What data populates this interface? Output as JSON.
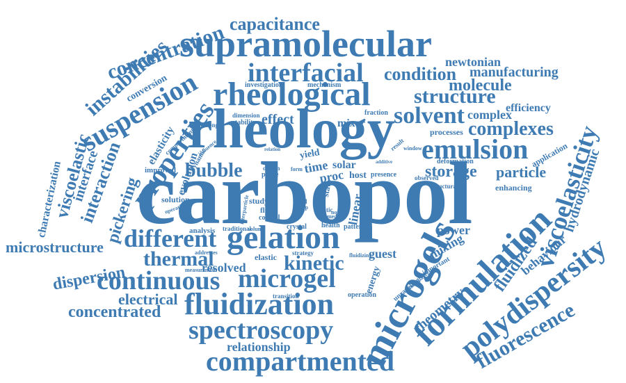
{
  "accent_color": "#3f7bb3",
  "words": {
    "carbopol": "carbopol",
    "rheology": "rheology",
    "rheological": "rheological",
    "supramolecular": "supramolecular",
    "microgels": "microgels",
    "formulation": "formulation",
    "gelation": "gelation",
    "compartmented": "compartmented",
    "continuous": "continuous",
    "microgel": "microgel",
    "fluidization": "fluidization",
    "spectroscopy": "spectroscopy",
    "polydispersity": "polydispersity",
    "fluorescence": "fluorescence",
    "viscoelasticity": "viscoelasticity",
    "emulsion": "emulsion",
    "interfacial": "interfacial",
    "suspension": "suspension",
    "properties": "properties",
    "different": "different",
    "concentration": "concentration",
    "instabilities": "instabilities",
    "capacitance": "capacitance",
    "structure": "structure",
    "solvent": "solvent",
    "complexes": "complexes",
    "condition": "condition",
    "molecule": "molecule",
    "manufacturing": "manufacturing",
    "newtonian": "newtonian",
    "efficiency": "efficiency",
    "complex": "complex",
    "particle": "particle",
    "storage": "storage",
    "bubble": "bubble",
    "kinetic": "kinetic",
    "thermal": "thermal",
    "microstructure": "microstructure",
    "dispersion": "dispersion",
    "concentrated": "concentrated",
    "electrical": "electrical",
    "relationship": "relationship",
    "resolved": "resolved",
    "viscoelastic": "viscoelastic",
    "interface": "interface",
    "interaction": "interaction",
    "pickering": "pickering",
    "characterization": "characterization",
    "conversion": "conversion",
    "elasticity": "elasticity",
    "evolution": "evolution",
    "improved": "improved",
    "solution": "solution",
    "analysis": "analysis",
    "effect": "effect",
    "mixer": "mixer",
    "time": "time",
    "solar": "solar",
    "proc": "proc",
    "host": "host",
    "linear": "linear",
    "guest": "guest",
    "power": "power",
    "mixing": "mixing",
    "fluidized": "fluidized",
    "behaviour": "behaviour",
    "hydrodynamic": "hydrodynamic",
    "rheometry": "rheometry",
    "energy": "energy",
    "application": "application",
    "enhancing": "enhancing",
    "processes": "processes",
    "deformation": "deformation",
    "mechanism": "mechanism",
    "investigation": "investigation",
    "dimension": "dimension",
    "stability": "stability",
    "challenge": "challenge",
    "fraction": "fraction",
    "presence": "presence",
    "dynamic": "dynamic",
    "elastic": "elastic",
    "study": "study",
    "fluid": "fluid",
    "control": "control",
    "design": "design",
    "phase": "phase",
    "yield": "yield",
    "gel": "gel",
    "final": "final",
    "map": "map",
    "state": "state",
    "static": "static",
    "novel": "novel",
    "health": "health",
    "pattern": "pattern",
    "traditional": "traditional",
    "crystal": "crystal",
    "strategy": "strategy",
    "operation": "operation",
    "transition": "transition",
    "measurement": "measurement",
    "unraveling": "unraveling",
    "important": "important",
    "monolayer": "monolayer",
    "observed": "observed",
    "structural": "structural",
    "result": "result",
    "window": "window",
    "compartment": "compartment",
    "influence": "influence",
    "additive": "additive",
    "operating": "operating",
    "volume": "volume",
    "addresses": "addresses",
    "interparticle": "interparticle",
    "fluidizing": "fluidizing",
    "media": "media",
    "form": "form",
    "relation": "relation"
  }
}
